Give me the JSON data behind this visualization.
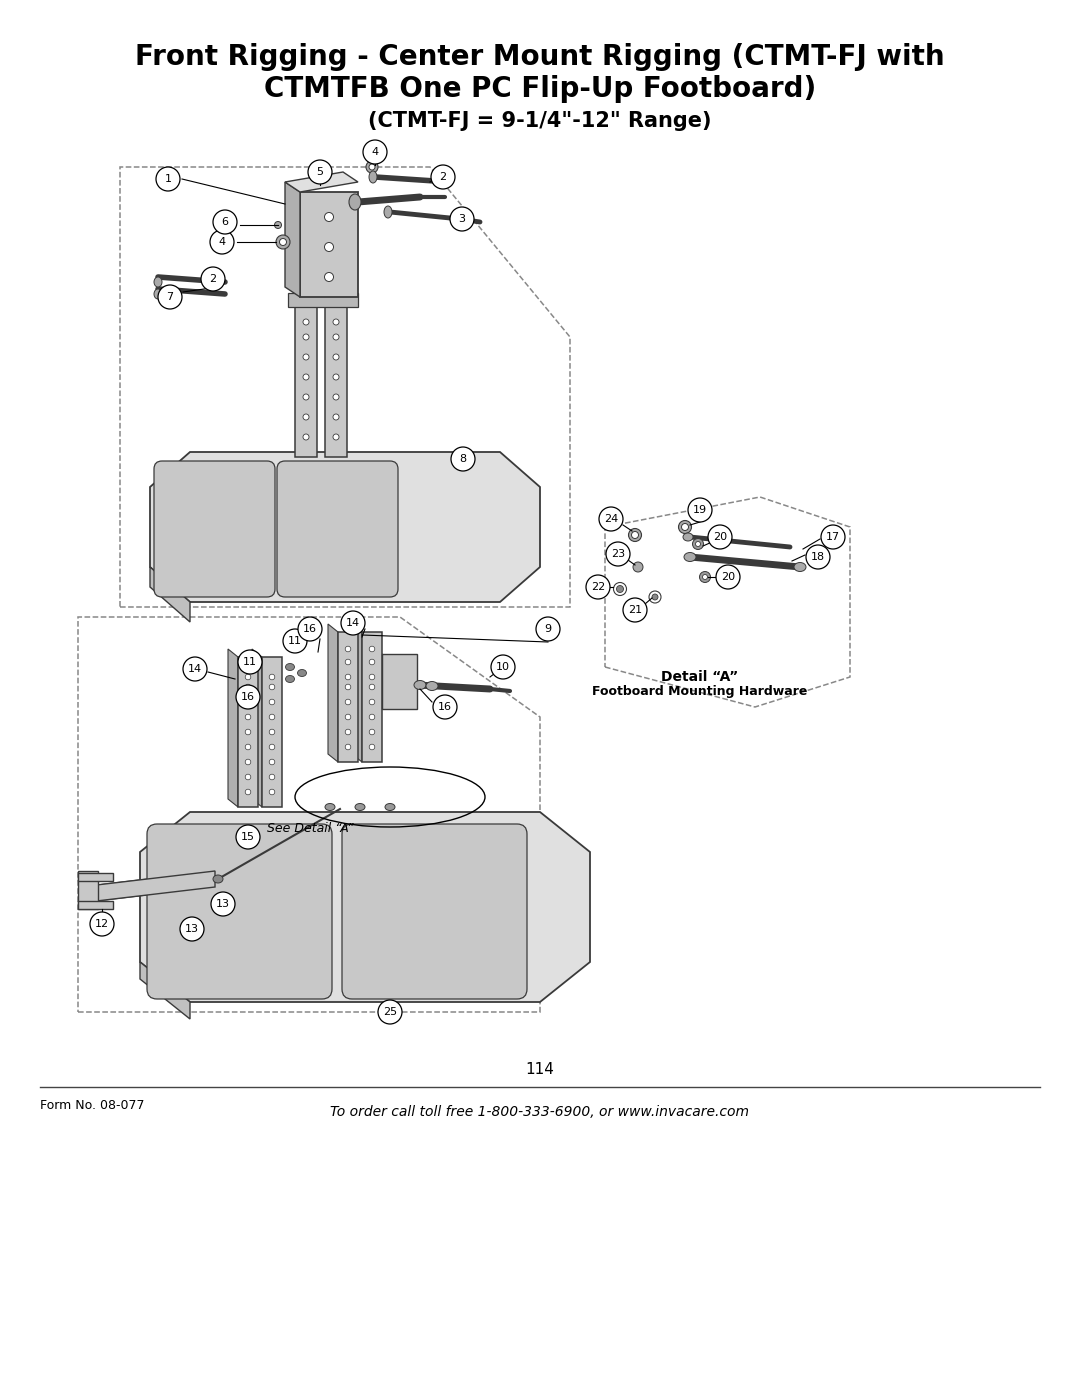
{
  "title_line1": "Front Rigging - Center Mount Rigging (CTMT-FJ with",
  "title_line2": "CTMTFB One PC Flip-Up Footboard)",
  "title_line3": "(CTMT-FJ = 9-1/4\"-12\" Range)",
  "page_number": "114",
  "form_number": "Form No. 08-077",
  "footer_text": "To order call toll free 1-800-333-6900, or www.invacare.com",
  "detail_label": "Detail “A”",
  "detail_sublabel": "Footboard Mounting Hardware",
  "see_detail": "See Detail “A”",
  "bg_color": "#ffffff",
  "fg_color": "#000000",
  "draw_color": "#3a3a3a",
  "dashed_color": "#888888",
  "fill_light": "#e0e0e0",
  "fill_mid": "#c8c8c8",
  "fill_dark": "#b0b0b0"
}
